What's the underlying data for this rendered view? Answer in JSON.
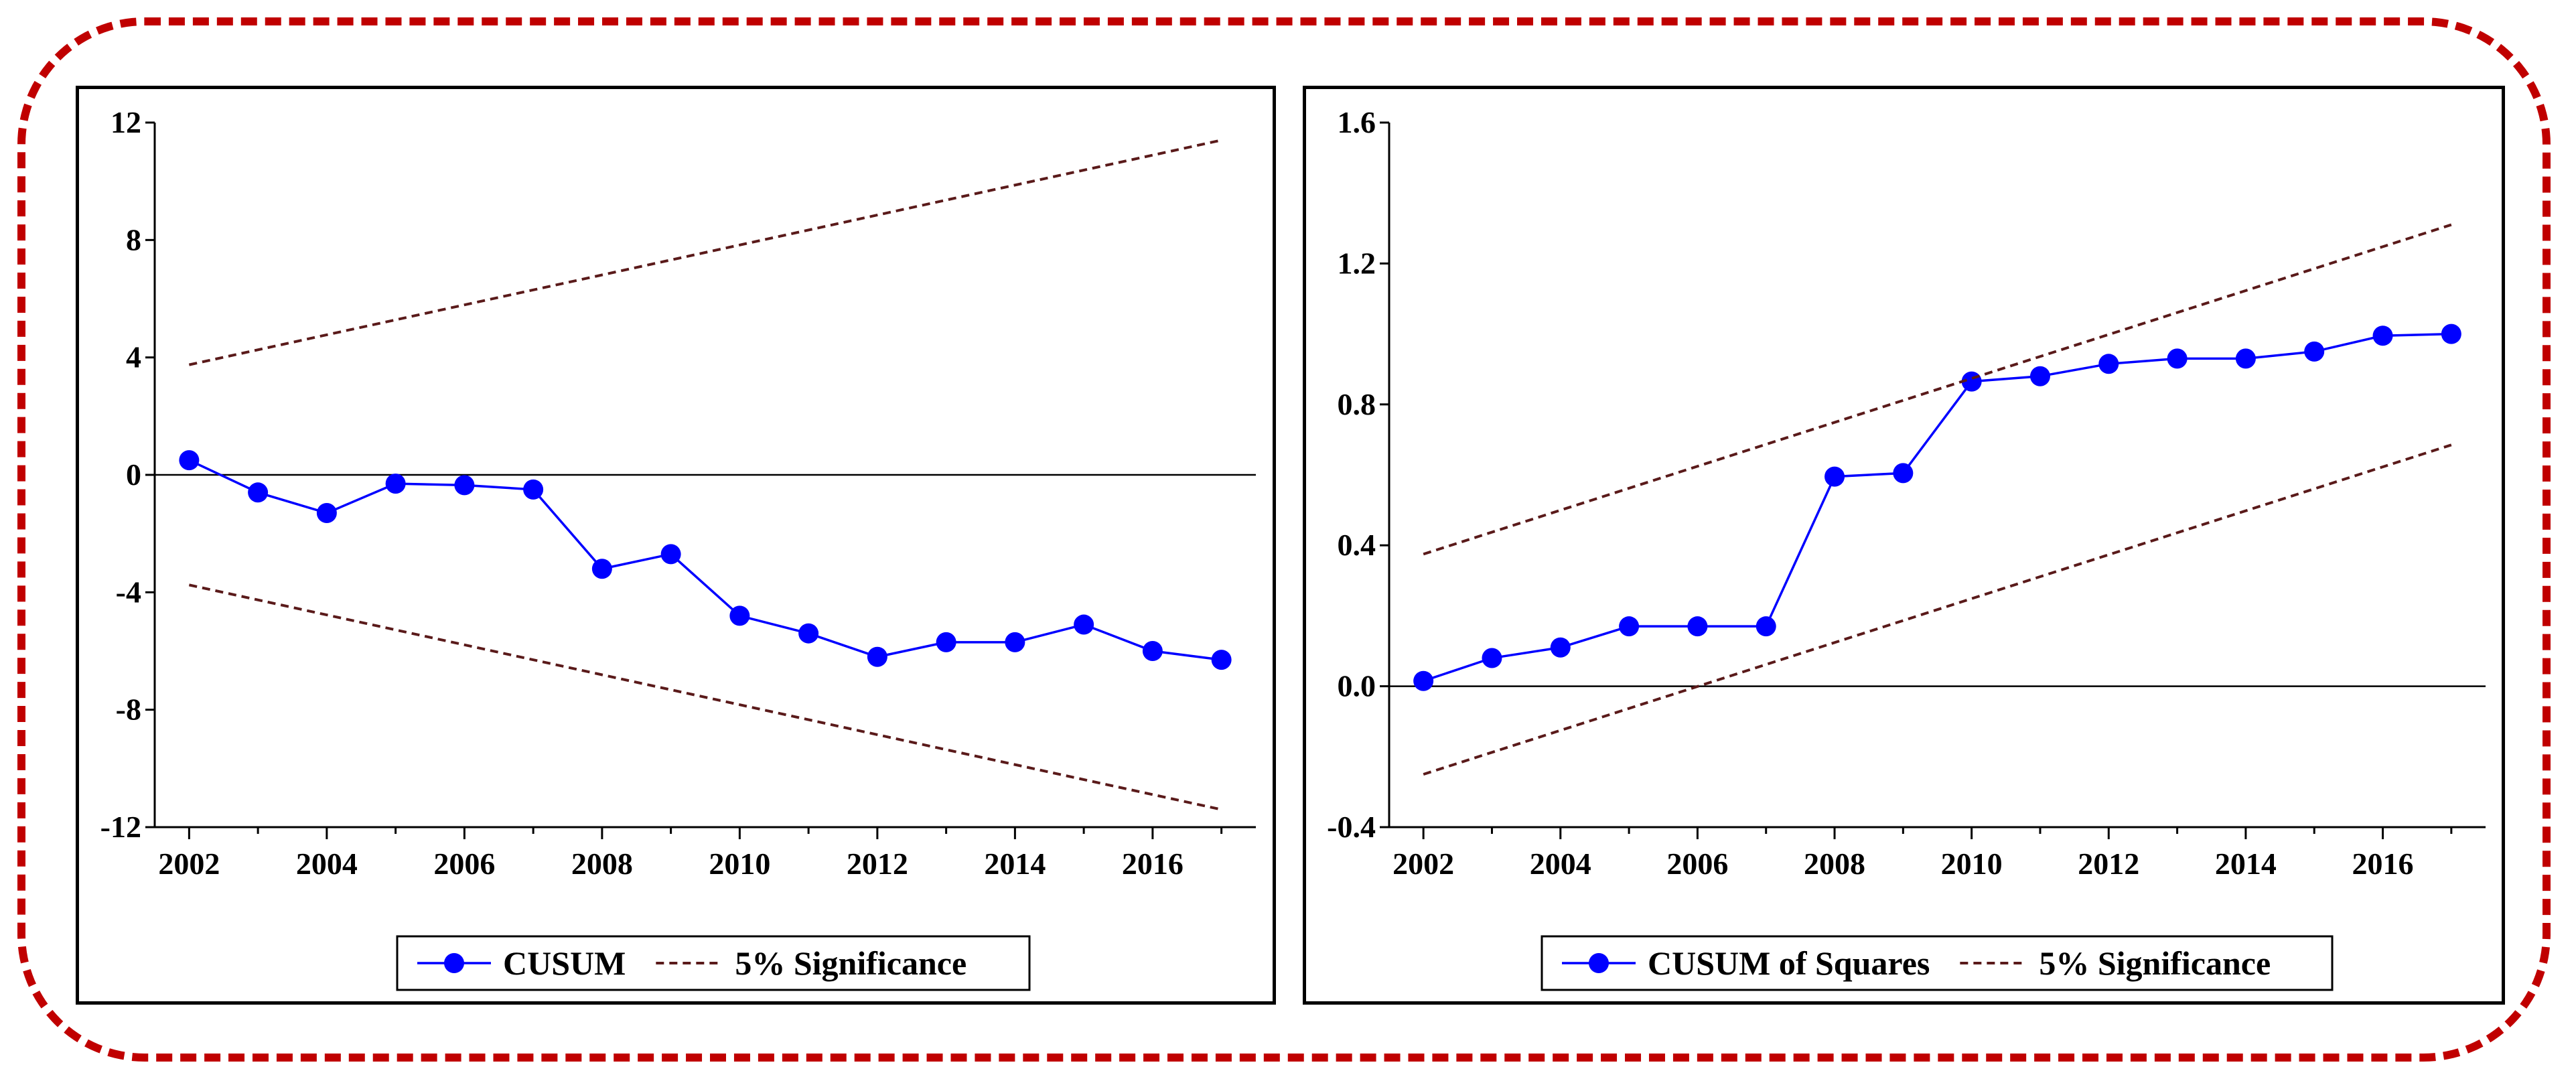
{
  "colors": {
    "frame_border": "#c00000",
    "series": "#0000ff",
    "significance": "#5a1a1a",
    "axis": "#000000"
  },
  "chart_data": [
    {
      "type": "line",
      "name": "cusum",
      "x": [
        2002,
        2003,
        2004,
        2005,
        2006,
        2007,
        2008,
        2009,
        2010,
        2011,
        2012,
        2013,
        2014,
        2015,
        2016,
        2017
      ],
      "series": [
        {
          "name": "CUSUM",
          "style": "line-with-markers",
          "values": [
            0.5,
            -0.6,
            -1.3,
            -0.3,
            -0.35,
            -0.5,
            -3.2,
            -2.7,
            -4.8,
            -5.4,
            -6.2,
            -5.7,
            -5.7,
            -5.1,
            -6.0,
            -6.3
          ]
        },
        {
          "name": "5% Significance",
          "style": "dashed",
          "x": [
            2002,
            2017
          ],
          "values": [
            3.75,
            11.4
          ]
        },
        {
          "name": "5% Significance (lower)",
          "style": "dashed",
          "legend": false,
          "x": [
            2002,
            2017
          ],
          "values": [
            -3.75,
            -11.4
          ]
        }
      ],
      "ylim": [
        -12,
        12
      ],
      "yticks": [
        -12,
        -8,
        -4,
        0,
        4,
        8,
        12
      ],
      "ytick_labels": [
        "-12",
        "-8",
        "-4",
        "0",
        "4",
        "8",
        "12"
      ],
      "xlim": [
        2001.5,
        2017.5
      ],
      "xticks": [
        2002,
        2004,
        2006,
        2008,
        2010,
        2012,
        2014,
        2016
      ],
      "xtick_labels": [
        "2002",
        "2004",
        "2006",
        "2008",
        "2010",
        "2012",
        "2014",
        "2016"
      ],
      "zero_line": 0,
      "legend": {
        "position": "bottom-center",
        "entries": [
          "CUSUM",
          "5% Significance"
        ]
      },
      "title": "",
      "xlabel": "",
      "ylabel": ""
    },
    {
      "type": "line",
      "name": "cusum-of-squares",
      "x": [
        2002,
        2003,
        2004,
        2005,
        2006,
        2007,
        2008,
        2009,
        2010,
        2011,
        2012,
        2013,
        2014,
        2015,
        2016,
        2017
      ],
      "series": [
        {
          "name": "CUSUM of Squares",
          "style": "line-with-markers",
          "values": [
            0.015,
            0.08,
            0.11,
            0.17,
            0.17,
            0.17,
            0.595,
            0.605,
            0.865,
            0.88,
            0.915,
            0.93,
            0.93,
            0.95,
            0.995,
            1.0
          ]
        },
        {
          "name": "5% Significance",
          "style": "dashed",
          "x": [
            2002,
            2017
          ],
          "values": [
            0.375,
            1.31
          ]
        },
        {
          "name": "5% Significance (lower)",
          "style": "dashed",
          "legend": false,
          "x": [
            2002,
            2017
          ],
          "values": [
            -0.25,
            0.685
          ]
        }
      ],
      "ylim": [
        -0.4,
        1.6
      ],
      "yticks": [
        -0.4,
        0.0,
        0.4,
        0.8,
        1.2,
        1.6
      ],
      "ytick_labels": [
        "-0.4",
        "0.0",
        "0.4",
        "0.8",
        "1.2",
        "1.6"
      ],
      "xlim": [
        2001.5,
        2017.5
      ],
      "xticks": [
        2002,
        2004,
        2006,
        2008,
        2010,
        2012,
        2014,
        2016
      ],
      "xtick_labels": [
        "2002",
        "2004",
        "2006",
        "2008",
        "2010",
        "2012",
        "2014",
        "2016"
      ],
      "zero_line": 0,
      "legend": {
        "position": "bottom-center",
        "entries": [
          "CUSUM of Squares",
          "5% Significance"
        ]
      },
      "title": "",
      "xlabel": "",
      "ylabel": ""
    }
  ]
}
